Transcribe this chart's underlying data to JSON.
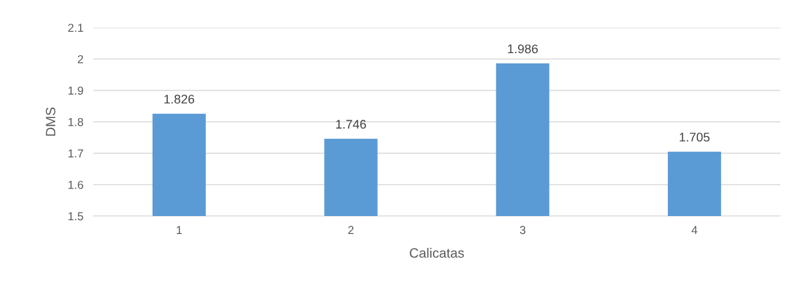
{
  "chart_data": {
    "type": "bar",
    "xlabel": "Calicatas",
    "ylabel": "DMS",
    "categories": [
      "1",
      "2",
      "3",
      "4"
    ],
    "values": [
      1.826,
      1.746,
      1.986,
      1.705
    ],
    "color": "#5b9bd5",
    "ylim": [
      1.5,
      2.1
    ],
    "yticks": [
      1.5,
      1.6,
      1.7,
      1.8,
      1.9,
      2,
      2.1
    ],
    "grid": "y",
    "data_labels": true
  }
}
